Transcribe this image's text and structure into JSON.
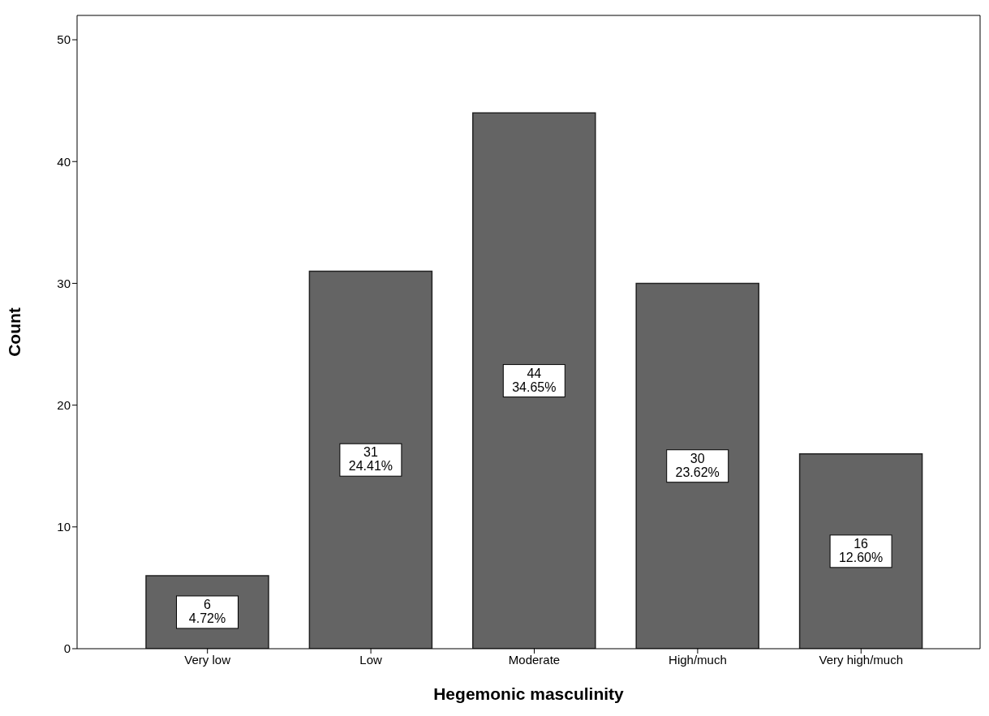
{
  "chart_data": {
    "type": "bar",
    "xlabel": "Hegemonic masculinity",
    "ylabel": "Count",
    "categories": [
      "Very low",
      "Low",
      "Moderate",
      "High/much",
      "Very high/much"
    ],
    "values": [
      6,
      31,
      44,
      30,
      16
    ],
    "value_labels": [
      "6\n4.72%",
      "31\n24.41%",
      "44\n34.65%",
      "30\n23.62%",
      "16\n12.60%"
    ],
    "color": "#646464",
    "ylim": [
      0,
      52
    ],
    "yticks": [
      0,
      10,
      20,
      30,
      40,
      50
    ],
    "grid": false
  }
}
